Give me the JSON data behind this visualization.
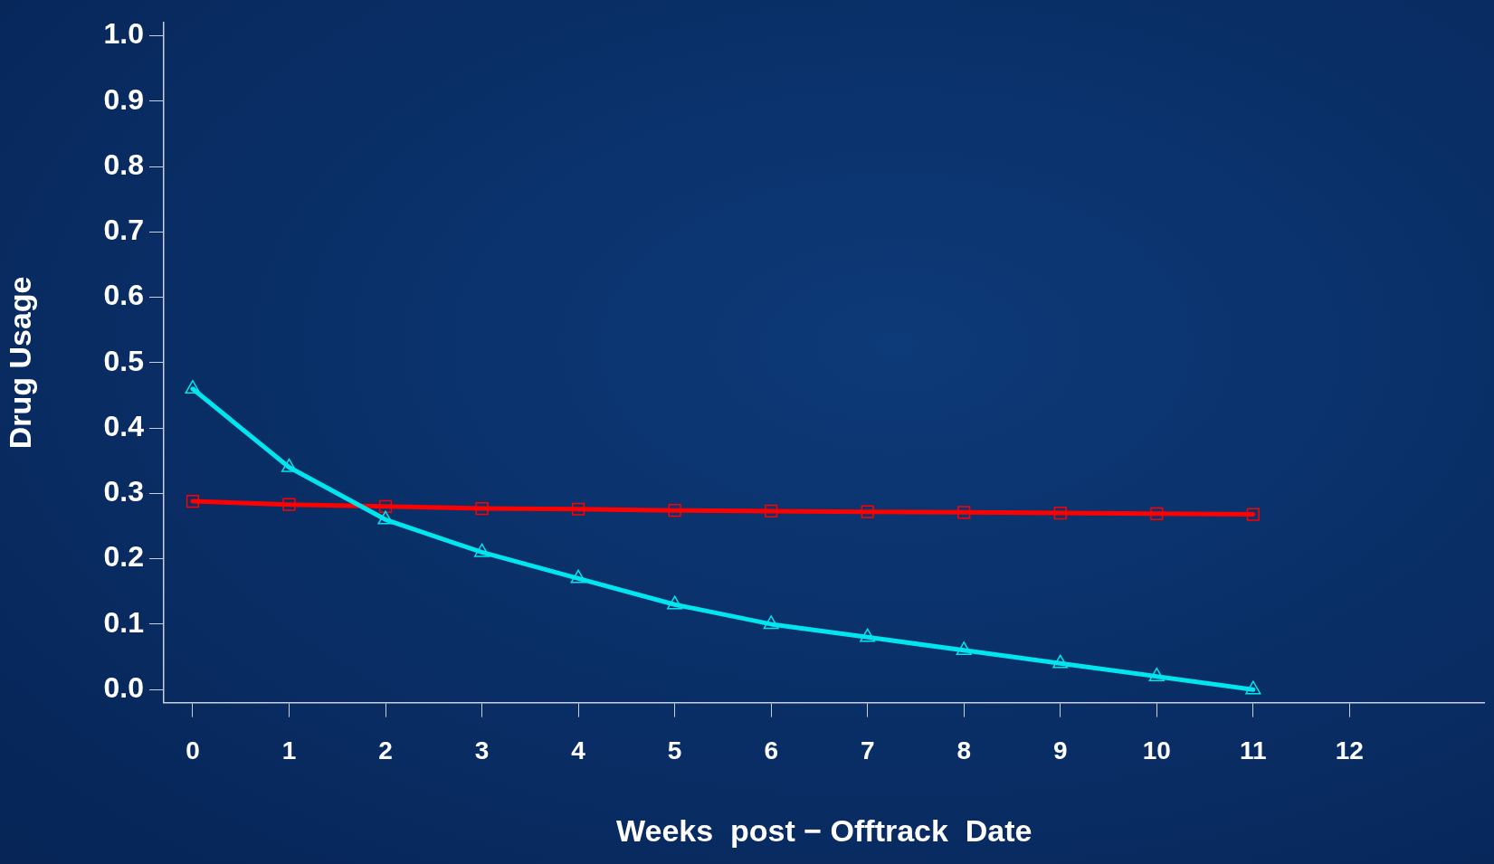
{
  "chart_data": {
    "type": "line",
    "xlabel": "Weeks  post − Offtrack  Date",
    "ylabel": "Drug Usage",
    "x": [
      0,
      1,
      2,
      3,
      4,
      5,
      6,
      7,
      8,
      9,
      10,
      11
    ],
    "series": [
      {
        "color": "#00e5ee",
        "marker": "triangle",
        "values": [
          0.46,
          0.34,
          0.26,
          0.21,
          0.17,
          0.13,
          0.1,
          0.08,
          0.06,
          0.04,
          0.02,
          0.0
        ]
      },
      {
        "color": "#ff0000",
        "marker": "square",
        "values": [
          0.288,
          0.283,
          0.28,
          0.277,
          0.276,
          0.274,
          0.273,
          0.272,
          0.271,
          0.27,
          0.269,
          0.268
        ]
      }
    ],
    "xlim": [
      -0.3,
      13.4
    ],
    "xticks": [
      0,
      1,
      2,
      3,
      4,
      5,
      6,
      7,
      8,
      9,
      10,
      11,
      12
    ],
    "ylim": [
      -0.02,
      1.02
    ],
    "yticks": [
      {
        "value": 0,
        "label": "0.0"
      },
      {
        "value": 0.1,
        "label": "0.1"
      },
      {
        "value": 0.2,
        "label": "0.2"
      },
      {
        "value": 0.3,
        "label": "0.3"
      },
      {
        "value": 0.4,
        "label": "0.4"
      },
      {
        "value": 0.5,
        "label": "0.5"
      },
      {
        "value": 0.6,
        "label": "0.6"
      },
      {
        "value": 0.7,
        "label": "0.7"
      },
      {
        "value": 0.8,
        "label": "0.8"
      },
      {
        "value": 0.9,
        "label": "0.9"
      },
      {
        "value": 1,
        "label": "1.0"
      }
    ],
    "grid": false,
    "legend": false,
    "line_style": "solid"
  }
}
